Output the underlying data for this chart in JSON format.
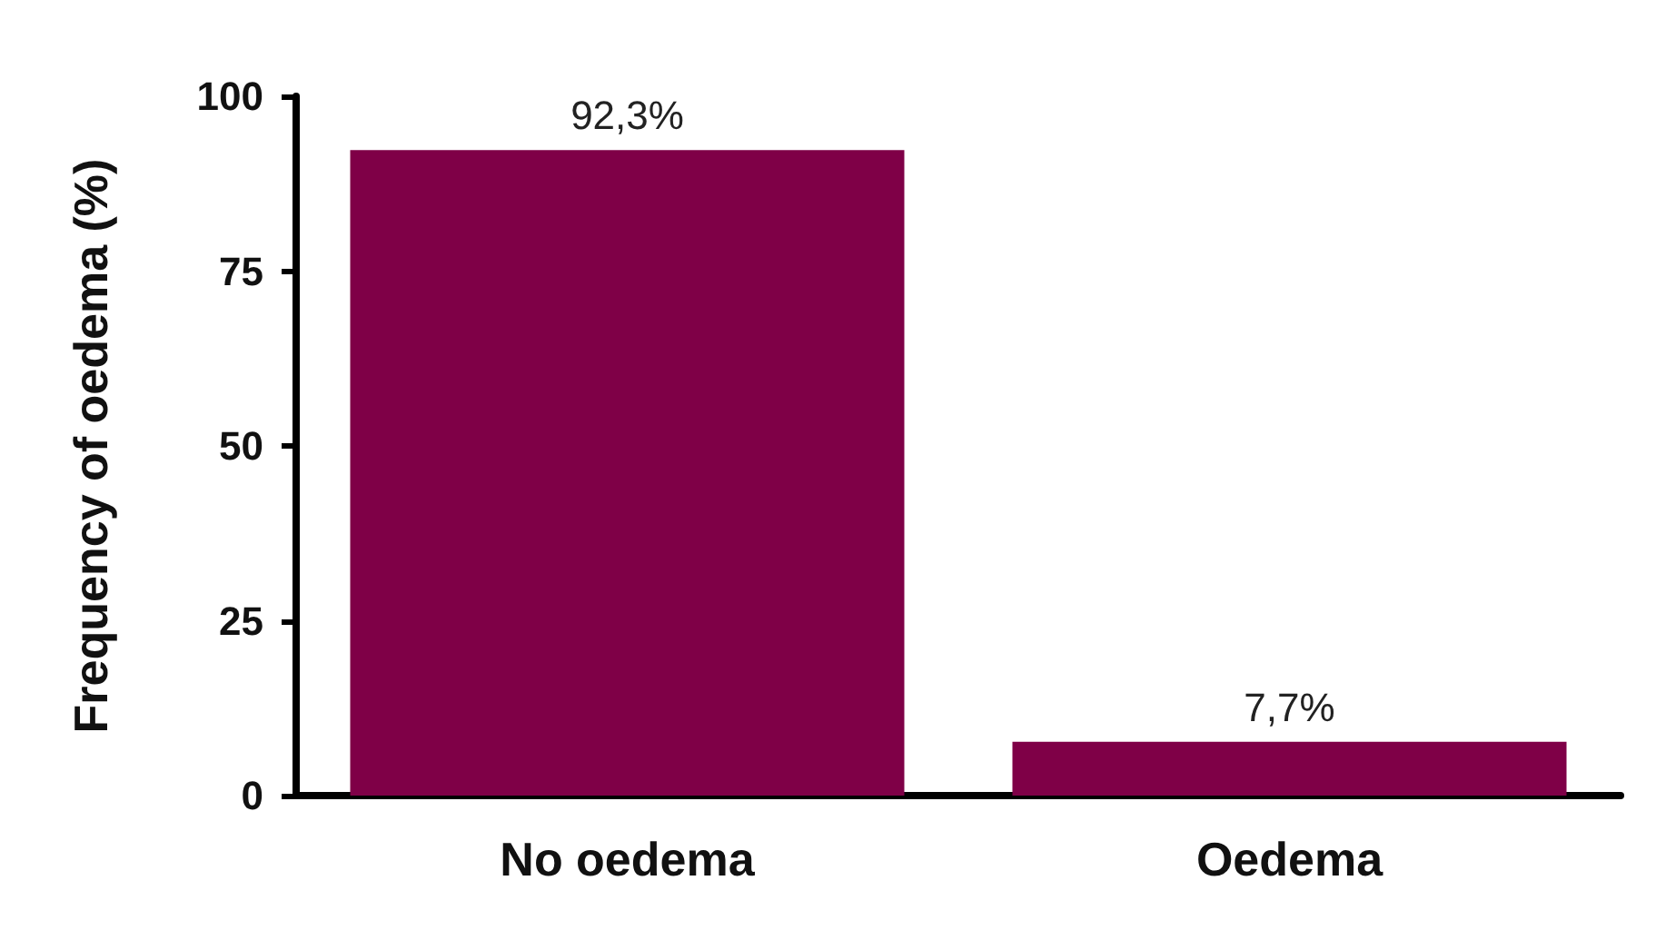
{
  "chart_data": {
    "type": "bar",
    "ylabel": "Frequency of oedema (%)",
    "categories": [
      "No oedema",
      "Oedema"
    ],
    "values": [
      92.3,
      7.7
    ],
    "value_labels": [
      "92,3%",
      "7,7%"
    ],
    "color": "#7f0047",
    "ylim": [
      0,
      100
    ],
    "yticks": [
      0,
      25,
      50,
      75,
      100
    ],
    "grid": false
  }
}
